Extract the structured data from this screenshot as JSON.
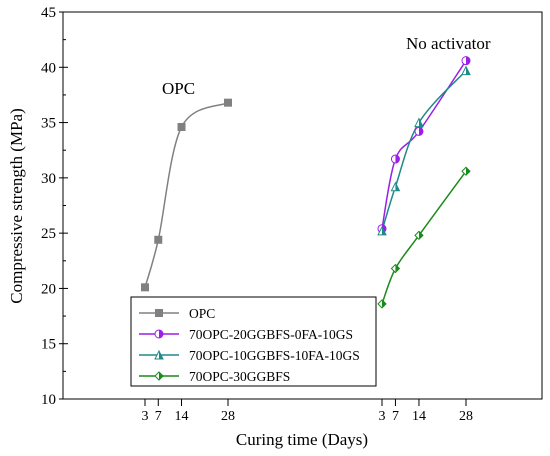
{
  "chart_data": {
    "type": "line",
    "xlabel": "Curing time (Days)",
    "ylabel": "Compressive strength (MPa)",
    "ylim": [
      10,
      45
    ],
    "y_ticks": [
      10,
      15,
      20,
      25,
      30,
      35,
      40,
      45
    ],
    "x_groups": [
      {
        "ticks": [
          3,
          7,
          14,
          28
        ],
        "label": "OPC"
      },
      {
        "ticks": [
          3,
          7,
          14,
          28
        ],
        "label": "No activator"
      }
    ],
    "series": [
      {
        "name": "OPC",
        "group": 0,
        "color": "#808080",
        "marker": "square",
        "x": [
          3,
          7,
          14,
          28
        ],
        "values": [
          20.1,
          24.4,
          34.6,
          36.8
        ]
      },
      {
        "name": "70OPC-20GGBFS-0FA-10GS",
        "group": 1,
        "color": "#9a1fe8",
        "marker": "half-circle",
        "x": [
          3,
          7,
          14,
          28
        ],
        "values": [
          25.4,
          31.7,
          34.2,
          40.6
        ]
      },
      {
        "name": "70OPC-10GGBFS-10FA-10GS",
        "group": 1,
        "color": "#1f8a8a",
        "marker": "half-triangle",
        "x": [
          3,
          7,
          14,
          28
        ],
        "values": [
          25.2,
          29.2,
          35.0,
          39.7
        ]
      },
      {
        "name": "70OPC-30GGBFS",
        "group": 1,
        "color": "#1a8a1a",
        "marker": "half-diamond",
        "x": [
          3,
          7,
          14,
          28
        ],
        "values": [
          18.6,
          21.8,
          24.8,
          30.6
        ]
      }
    ],
    "legend_position": "bottom-left",
    "grid": false
  }
}
